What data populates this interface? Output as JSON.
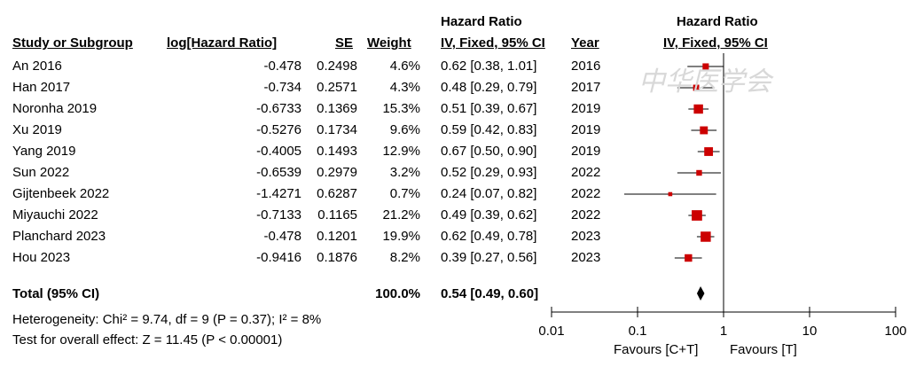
{
  "headers": {
    "study": "Study or Subgroup",
    "loghr": "log[Hazard Ratio]",
    "se": "SE",
    "weight": "Weight",
    "hr_top": "Hazard Ratio",
    "hr_method": "IV, Fixed, 95% CI",
    "year": "Year",
    "plot_top": "Hazard Ratio",
    "plot_method": "IV, Fixed, 95% CI"
  },
  "total": {
    "label": "Total (95% CI)",
    "weight": "100.0%",
    "ci": "0.54 [0.49, 0.60]"
  },
  "heterogeneity": "Heterogeneity: Chi² = 9.74, df = 9 (P = 0.37); I² = 8%",
  "overall_effect": "Test for overall effect: Z = 11.45 (P < 0.00001)",
  "axis": {
    "ticks": [
      "0.01",
      "0.1",
      "1",
      "10",
      "100"
    ],
    "favours_left": "Favours [C+T]",
    "favours_right": "Favours [T]"
  },
  "watermark": "中华医学会",
  "colors": {
    "marker": "#cc0000",
    "line": "#000000"
  },
  "chart_data": {
    "type": "forest",
    "scale": "log",
    "xlim": [
      0.01,
      100
    ],
    "studies": [
      {
        "name": "An 2016",
        "loghr": "-0.478",
        "se": "0.2498",
        "weight": "4.6%",
        "ci_text": "0.62 [0.38, 1.01]",
        "year": "2016",
        "hr": 0.62,
        "lo": 0.38,
        "hi": 1.01,
        "w": 4.6
      },
      {
        "name": "Han 2017",
        "loghr": "-0.734",
        "se": "0.2571",
        "weight": "4.3%",
        "ci_text": "0.48 [0.29, 0.79]",
        "year": "2017",
        "hr": 0.48,
        "lo": 0.29,
        "hi": 0.79,
        "w": 4.3
      },
      {
        "name": "Noronha 2019",
        "loghr": "-0.6733",
        "se": "0.1369",
        "weight": "15.3%",
        "ci_text": "0.51 [0.39, 0.67]",
        "year": "2019",
        "hr": 0.51,
        "lo": 0.39,
        "hi": 0.67,
        "w": 15.3
      },
      {
        "name": "Xu 2019",
        "loghr": "-0.5276",
        "se": "0.1734",
        "weight": "9.6%",
        "ci_text": "0.59 [0.42, 0.83]",
        "year": "2019",
        "hr": 0.59,
        "lo": 0.42,
        "hi": 0.83,
        "w": 9.6
      },
      {
        "name": "Yang 2019",
        "loghr": "-0.4005",
        "se": "0.1493",
        "weight": "12.9%",
        "ci_text": "0.67 [0.50, 0.90]",
        "year": "2019",
        "hr": 0.67,
        "lo": 0.5,
        "hi": 0.9,
        "w": 12.9
      },
      {
        "name": "Sun 2022",
        "loghr": "-0.6539",
        "se": "0.2979",
        "weight": "3.2%",
        "ci_text": "0.52 [0.29, 0.93]",
        "year": "2022",
        "hr": 0.52,
        "lo": 0.29,
        "hi": 0.93,
        "w": 3.2
      },
      {
        "name": "Gijtenbeek 2022",
        "loghr": "-1.4271",
        "se": "0.6287",
        "weight": "0.7%",
        "ci_text": "0.24 [0.07, 0.82]",
        "year": "2022",
        "hr": 0.24,
        "lo": 0.07,
        "hi": 0.82,
        "w": 0.7
      },
      {
        "name": "Miyauchi 2022",
        "loghr": "-0.7133",
        "se": "0.1165",
        "weight": "21.2%",
        "ci_text": "0.49 [0.39, 0.62]",
        "year": "2022",
        "hr": 0.49,
        "lo": 0.39,
        "hi": 0.62,
        "w": 21.2
      },
      {
        "name": "Planchard 2023",
        "loghr": "-0.478",
        "se": "0.1201",
        "weight": "19.9%",
        "ci_text": "0.62 [0.49, 0.78]",
        "year": "2023",
        "hr": 0.62,
        "lo": 0.49,
        "hi": 0.78,
        "w": 19.9
      },
      {
        "name": "Hou 2023",
        "loghr": "-0.9416",
        "se": "0.1876",
        "weight": "8.2%",
        "ci_text": "0.39 [0.27, 0.56]",
        "year": "2023",
        "hr": 0.39,
        "lo": 0.27,
        "hi": 0.56,
        "w": 8.2
      }
    ],
    "pooled": {
      "hr": 0.54,
      "lo": 0.49,
      "hi": 0.6
    }
  }
}
